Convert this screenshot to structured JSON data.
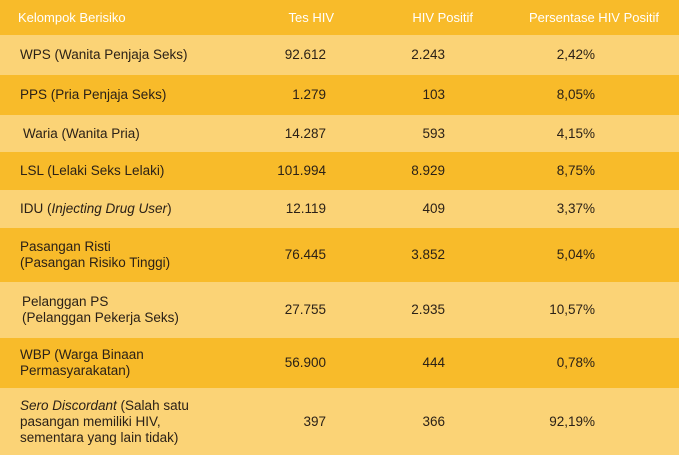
{
  "headers": [
    "Kelompok Berisiko",
    "Tes HIV",
    "HIV Positif",
    "Persentase HIV Positif"
  ],
  "rows": [
    {
      "group": "WPS (Wanita Penjaja Seks)",
      "tests": "92.612",
      "positive": "2.243",
      "percent": "2,42%"
    },
    {
      "group": "PPS (Pria Penjaja Seks)",
      "tests": "1.279",
      "positive": "103",
      "percent": "8,05%"
    },
    {
      "group": "Waria (Wanita Pria)",
      "tests": "14.287",
      "positive": "593",
      "percent": "4,15%"
    },
    {
      "group": "LSL (Lelaki Seks Lelaki)",
      "tests": "101.994",
      "positive": "8.929",
      "percent": "8,75%"
    },
    {
      "group_a": "IDU (",
      "group_b": "Injecting Drug User",
      "group_c": ")",
      "tests": "12.119",
      "positive": "409",
      "percent": "3,37%"
    },
    {
      "group_line1": "Pasangan Risti",
      "group_line2": "(Pasangan Risiko Tinggi)",
      "tests": "76.445",
      "positive": "3.852",
      "percent": "5,04%"
    },
    {
      "group_line1": "Pelanggan PS",
      "group_line2": "(Pelanggan Pekerja Seks)",
      "tests": "27.755",
      "positive": "2.935",
      "percent": "10,57%"
    },
    {
      "group_line1": "WBP (Warga Binaan",
      "group_line2": "Permasyarakatan)",
      "tests": "56.900",
      "positive": "444",
      "percent": "0,78%"
    },
    {
      "group_it": "Sero Discordant",
      "group_rest1": " (Salah satu",
      "group_line2": "pasangan memiliki HIV,",
      "group_line3": "sementara yang lain tidak)",
      "tests": "397",
      "positive": "366",
      "percent": "92,19%"
    }
  ]
}
